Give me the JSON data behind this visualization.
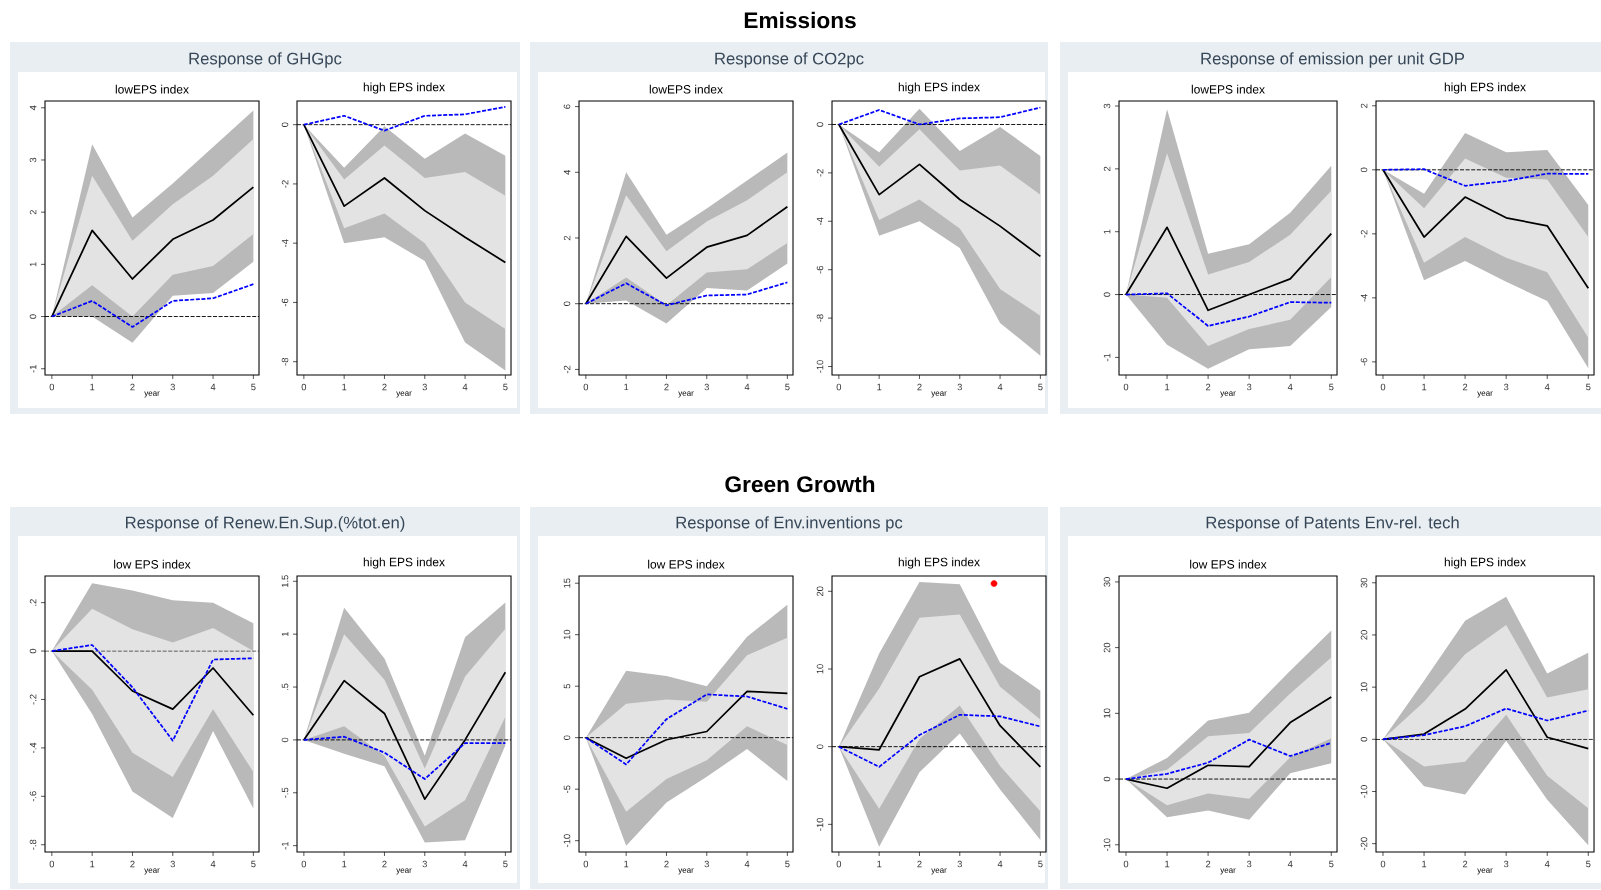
{
  "chart_data": [
    {
      "type": "other",
      "title": "Emissions"
    },
    {
      "type": "other",
      "title": "Response of GHGpc"
    },
    {
      "type": "line",
      "title": "lowEPS index",
      "xlabel": "year",
      "x": [
        0,
        1,
        2,
        3,
        4,
        5
      ],
      "xlim": [
        -0.17,
        5.14
      ],
      "xticks": [
        0,
        1,
        2,
        3,
        4,
        5
      ],
      "ylim": [
        -1.12,
        4.13
      ],
      "yticks": [
        -1,
        0,
        1,
        2,
        3,
        4
      ],
      "ref_lines": [
        {
          "axis": "y",
          "value": 0,
          "color": "#000000",
          "line_style": "dashed"
        }
      ],
      "series": [
        {
          "color": "#b9b9b9",
          "values": [
            null,
            null,
            null,
            null,
            null,
            null
          ],
          "lower": [
            0,
            0,
            -0.5,
            0.4,
            0.45,
            1.05
          ],
          "upper": [
            0,
            3.3,
            1.9,
            2.55,
            3.25,
            3.95
          ]
        },
        {
          "color": "#e3e3e3",
          "values": [
            null,
            null,
            null,
            null,
            null,
            null
          ],
          "lower": [
            0,
            0.6,
            0.0,
            0.8,
            0.97,
            1.58
          ],
          "upper": [
            0,
            2.7,
            1.45,
            2.15,
            2.7,
            3.4
          ]
        },
        {
          "color": "#000000",
          "values": [
            0,
            1.65,
            0.72,
            1.48,
            1.85,
            2.48
          ]
        },
        {
          "color": "#0000ff",
          "line_style": "dashed",
          "values": [
            0,
            0.3,
            -0.2,
            0.3,
            0.35,
            0.62
          ]
        }
      ]
    },
    {
      "type": "line",
      "title": "high EPS index",
      "xlabel": "year",
      "x": [
        0,
        1,
        2,
        3,
        4,
        5
      ],
      "xlim": [
        -0.17,
        5.14
      ],
      "xticks": [
        0,
        1,
        2,
        3,
        4,
        5
      ],
      "ylim": [
        -8.45,
        0.8
      ],
      "yticks": [
        -8,
        -6,
        -4,
        -2,
        0
      ],
      "ref_lines": [
        {
          "axis": "y",
          "value": 0,
          "color": "#000000",
          "line_style": "dashed"
        }
      ],
      "series": [
        {
          "color": "#b9b9b9",
          "values": [
            null,
            null,
            null,
            null,
            null,
            null
          ],
          "lower": [
            0,
            -4.0,
            -3.8,
            -4.6,
            -7.35,
            -8.3
          ],
          "upper": [
            0,
            -1.45,
            -0.05,
            -1.15,
            -0.3,
            -1.05
          ]
        },
        {
          "color": "#e3e3e3",
          "values": [
            null,
            null,
            null,
            null,
            null,
            null
          ],
          "lower": [
            0,
            -3.5,
            -3.0,
            -4.0,
            -6.0,
            -6.9
          ],
          "upper": [
            0,
            -1.85,
            -0.7,
            -1.8,
            -1.6,
            -2.4
          ]
        },
        {
          "color": "#000000",
          "values": [
            0,
            -2.75,
            -1.8,
            -2.9,
            -3.8,
            -4.65
          ]
        },
        {
          "color": "#0000ff",
          "line_style": "dashed",
          "values": [
            0,
            0.3,
            -0.2,
            0.3,
            0.35,
            0.6
          ]
        }
      ]
    },
    {
      "type": "other",
      "title": "Response of CO2pc"
    },
    {
      "type": "line",
      "title": "lowEPS index",
      "xlabel": "year",
      "x": [
        0,
        1,
        2,
        3,
        4,
        5
      ],
      "xlim": [
        -0.17,
        5.14
      ],
      "xticks": [
        0,
        1,
        2,
        3,
        4,
        5
      ],
      "ylim": [
        -2.17,
        6.17
      ],
      "yticks": [
        -2,
        0,
        2,
        4,
        6
      ],
      "ref_lines": [
        {
          "axis": "y",
          "value": 0,
          "color": "#000000",
          "line_style": "dashed"
        }
      ],
      "series": [
        {
          "color": "#b9b9b9",
          "values": [
            null,
            null,
            null,
            null,
            null,
            null
          ],
          "lower": [
            0,
            0.1,
            -0.6,
            0.48,
            0.4,
            1.22
          ],
          "upper": [
            0,
            4.0,
            2.1,
            2.9,
            3.75,
            4.6
          ]
        },
        {
          "color": "#e3e3e3",
          "values": [
            null,
            null,
            null,
            null,
            null,
            null
          ],
          "lower": [
            0,
            0.8,
            -0.05,
            0.95,
            1.05,
            1.85
          ],
          "upper": [
            0,
            3.3,
            1.6,
            2.5,
            3.15,
            4.0
          ]
        },
        {
          "color": "#000000",
          "values": [
            0,
            2.05,
            0.78,
            1.72,
            2.08,
            2.95
          ]
        },
        {
          "color": "#0000ff",
          "line_style": "dashed",
          "values": [
            0,
            0.62,
            -0.05,
            0.25,
            0.28,
            0.65
          ]
        }
      ]
    },
    {
      "type": "line",
      "title": "high EPS index",
      "xlabel": "year",
      "x": [
        0,
        1,
        2,
        3,
        4,
        5
      ],
      "xlim": [
        -0.17,
        5.14
      ],
      "xticks": [
        0,
        1,
        2,
        3,
        4,
        5
      ],
      "ylim": [
        -10.35,
        0.97
      ],
      "yticks": [
        -10,
        -8,
        -6,
        -4,
        -2,
        0
      ],
      "ref_lines": [
        {
          "axis": "y",
          "value": 0,
          "color": "#000000",
          "line_style": "dashed"
        }
      ],
      "series": [
        {
          "color": "#b9b9b9",
          "values": [
            null,
            null,
            null,
            null,
            null,
            null
          ],
          "lower": [
            0,
            -4.6,
            -4.0,
            -5.1,
            -8.2,
            -9.55
          ],
          "upper": [
            0,
            -1.15,
            0.65,
            -1.1,
            -0.1,
            -1.3
          ]
        },
        {
          "color": "#e3e3e3",
          "values": [
            null,
            null,
            null,
            null,
            null,
            null
          ],
          "lower": [
            0,
            -3.95,
            -3.1,
            -4.3,
            -6.8,
            -7.9
          ],
          "upper": [
            0,
            -1.75,
            -0.2,
            -1.9,
            -1.7,
            -2.9
          ]
        },
        {
          "color": "#000000",
          "values": [
            0,
            -2.9,
            -1.65,
            -3.1,
            -4.2,
            -5.45
          ]
        },
        {
          "color": "#0000ff",
          "line_style": "dashed",
          "values": [
            0,
            0.6,
            0,
            0.25,
            0.3,
            0.7
          ]
        }
      ]
    },
    {
      "type": "other",
      "title": "Response of emission per unit GDP"
    },
    {
      "type": "line",
      "title": "lowEPS index",
      "xlabel": "year",
      "x": [
        0,
        1,
        2,
        3,
        4,
        5
      ],
      "xlim": [
        -0.17,
        5.14
      ],
      "xticks": [
        0,
        1,
        2,
        3,
        4,
        5
      ],
      "ylim": [
        -1.28,
        3.08
      ],
      "yticks": [
        -1,
        0,
        1,
        2,
        3
      ],
      "ref_lines": [
        {
          "axis": "y",
          "value": 0,
          "color": "#000000",
          "line_style": "dashed"
        }
      ],
      "series": [
        {
          "color": "#b9b9b9",
          "values": [
            null,
            null,
            null,
            null,
            null,
            null
          ],
          "lower": [
            0,
            -0.8,
            -1.18,
            -0.87,
            -0.82,
            -0.2
          ],
          "upper": [
            0,
            2.95,
            0.65,
            0.8,
            1.3,
            2.05
          ]
        },
        {
          "color": "#e3e3e3",
          "values": [
            null,
            null,
            null,
            null,
            null,
            null
          ],
          "lower": [
            0,
            -0.05,
            -0.82,
            -0.55,
            -0.4,
            0.28
          ],
          "upper": [
            0,
            2.25,
            0.32,
            0.52,
            0.95,
            1.65
          ]
        },
        {
          "color": "#000000",
          "values": [
            0,
            1.07,
            -0.25,
            0.0,
            0.25,
            0.97
          ]
        },
        {
          "color": "#0000ff",
          "line_style": "dashed",
          "values": [
            0,
            0.02,
            -0.5,
            -0.35,
            -0.12,
            -0.13
          ]
        }
      ]
    },
    {
      "type": "line",
      "title": "high EPS index",
      "xlabel": "year",
      "x": [
        0,
        1,
        2,
        3,
        4,
        5
      ],
      "xlim": [
        -0.17,
        5.14
      ],
      "xticks": [
        0,
        1,
        2,
        3,
        4,
        5
      ],
      "ylim": [
        -6.41,
        2.15
      ],
      "yticks": [
        -6,
        -4,
        -2,
        0,
        2
      ],
      "ref_lines": [
        {
          "axis": "y",
          "value": 0,
          "color": "#000000",
          "line_style": "dashed"
        }
      ],
      "series": [
        {
          "color": "#b9b9b9",
          "values": [
            null,
            null,
            null,
            null,
            null,
            null
          ],
          "lower": [
            0,
            -3.45,
            -2.85,
            -3.5,
            -4.1,
            -6.2
          ],
          "upper": [
            0,
            -0.75,
            1.15,
            0.55,
            0.62,
            -1.1
          ]
        },
        {
          "color": "#e3e3e3",
          "values": [
            null,
            null,
            null,
            null,
            null,
            null
          ],
          "lower": [
            0,
            -2.9,
            -2.1,
            -2.75,
            -3.2,
            -5.25
          ],
          "upper": [
            0,
            -1.2,
            0.35,
            -0.25,
            -0.3,
            -2.1
          ]
        },
        {
          "color": "#000000",
          "values": [
            0,
            -2.1,
            -0.85,
            -1.5,
            -1.75,
            -3.7
          ]
        },
        {
          "color": "#0000ff",
          "line_style": "dashed",
          "values": [
            0,
            0.02,
            -0.5,
            -0.35,
            -0.12,
            -0.13
          ]
        }
      ]
    },
    {
      "type": "other",
      "title": "Green Growth"
    },
    {
      "type": "other",
      "title": "Response of Renew.En.Sup.(%tot.en)"
    },
    {
      "type": "line",
      "title": "low EPS index",
      "xlabel": "year",
      "x": [
        0,
        1,
        2,
        3,
        4,
        5
      ],
      "xlim": [
        -0.17,
        5.14
      ],
      "xticks": [
        0,
        1,
        2,
        3,
        4,
        5
      ],
      "ylim": [
        -0.83,
        0.31
      ],
      "yticks": [
        {
          "value": -0.8,
          "label": "-.8"
        },
        {
          "value": -0.6,
          "label": "-.6"
        },
        {
          "value": -0.4,
          "label": "-.4"
        },
        {
          "value": -0.2,
          "label": "-.2"
        },
        0,
        {
          "value": 0.2,
          "label": ".2"
        }
      ],
      "ref_lines": [
        {
          "axis": "y",
          "value": 0,
          "color": "#000000",
          "line_style": "dashed"
        }
      ],
      "series": [
        {
          "color": "#b9b9b9",
          "values": [
            null,
            null,
            null,
            null,
            null,
            null
          ],
          "lower": [
            0,
            -0.26,
            -0.58,
            -0.69,
            -0.33,
            -0.65
          ],
          "upper": [
            0,
            0.28,
            0.25,
            0.21,
            0.2,
            0.115
          ]
        },
        {
          "color": "#e3e3e3",
          "values": [
            null,
            null,
            null,
            null,
            null,
            null
          ],
          "lower": [
            0,
            -0.16,
            -0.42,
            -0.52,
            -0.24,
            -0.5
          ],
          "upper": [
            0,
            0.175,
            0.09,
            0.035,
            0.095,
            0.0
          ]
        },
        {
          "color": "#000000",
          "values": [
            0,
            0.0,
            -0.165,
            -0.24,
            -0.07,
            -0.265
          ]
        },
        {
          "color": "#0000ff",
          "line_style": "dashed",
          "values": [
            0,
            0.025,
            -0.15,
            -0.37,
            -0.035,
            -0.03
          ]
        }
      ]
    },
    {
      "type": "line",
      "title": "high EPS index",
      "xlabel": "year",
      "x": [
        0,
        1,
        2,
        3,
        4,
        5
      ],
      "xlim": [
        -0.17,
        5.14
      ],
      "xticks": [
        0,
        1,
        2,
        3,
        4,
        5
      ],
      "ylim": [
        -1.06,
        1.55
      ],
      "yticks": [
        -1,
        {
          "value": -0.5,
          "label": "-.5"
        },
        0,
        {
          "value": 0.5,
          "label": ".5"
        },
        1,
        1.5
      ],
      "ref_lines": [
        {
          "axis": "y",
          "value": 0,
          "color": "#000000",
          "line_style": "dashed"
        }
      ],
      "series": [
        {
          "color": "#b9b9b9",
          "values": [
            null,
            null,
            null,
            null,
            null,
            null
          ],
          "lower": [
            0,
            -0.13,
            -0.25,
            -0.97,
            -0.95,
            -0.05
          ],
          "upper": [
            0,
            1.25,
            0.77,
            -0.15,
            0.97,
            1.3
          ]
        },
        {
          "color": "#e3e3e3",
          "values": [
            null,
            null,
            null,
            null,
            null,
            null
          ],
          "lower": [
            0,
            0.13,
            -0.15,
            -0.82,
            -0.57,
            0.22
          ],
          "upper": [
            0,
            1.0,
            0.57,
            -0.27,
            0.6,
            1.05
          ]
        },
        {
          "color": "#000000",
          "values": [
            0,
            0.56,
            0.25,
            -0.56,
            0.0,
            0.64
          ]
        },
        {
          "color": "#0000ff",
          "line_style": "dashed",
          "values": [
            0,
            0.03,
            -0.12,
            -0.37,
            -0.03,
            -0.03
          ]
        }
      ]
    },
    {
      "type": "other",
      "title": "Response of Env.inventions pc"
    },
    {
      "type": "line",
      "title": "low EPS index",
      "xlabel": "year",
      "x": [
        0,
        1,
        2,
        3,
        4,
        5
      ],
      "xlim": [
        -0.17,
        5.14
      ],
      "xticks": [
        0,
        1,
        2,
        3,
        4,
        5
      ],
      "ylim": [
        -11.1,
        15.7
      ],
      "yticks": [
        -10,
        -5,
        0,
        5,
        10,
        15
      ],
      "ref_lines": [
        {
          "axis": "y",
          "value": 0,
          "color": "#000000",
          "line_style": "dashed"
        }
      ],
      "series": [
        {
          "color": "#b9b9b9",
          "values": [
            null,
            null,
            null,
            null,
            null,
            null
          ],
          "lower": [
            0,
            -10.5,
            -6.3,
            -3.8,
            -1.1,
            -4.2
          ],
          "upper": [
            0,
            6.5,
            6.0,
            5.0,
            9.8,
            12.9
          ]
        },
        {
          "color": "#e3e3e3",
          "values": [
            null,
            null,
            null,
            null,
            null,
            null
          ],
          "lower": [
            0,
            -7.2,
            -4.0,
            -2.2,
            1.1,
            -0.7
          ],
          "upper": [
            0,
            3.3,
            3.7,
            3.5,
            8.0,
            9.7
          ]
        },
        {
          "color": "#000000",
          "values": [
            0,
            -2.0,
            -0.2,
            0.6,
            4.5,
            4.3
          ]
        },
        {
          "color": "#0000ff",
          "line_style": "dashed",
          "values": [
            0,
            -2.6,
            1.8,
            4.2,
            4.0,
            2.8
          ]
        }
      ]
    },
    {
      "type": "line",
      "title": "high EPS index",
      "xlabel": "year",
      "x": [
        0,
        1,
        2,
        3,
        4,
        5
      ],
      "xlim": [
        -0.17,
        5.14
      ],
      "xticks": [
        0,
        1,
        2,
        3,
        4,
        5
      ],
      "ylim": [
        -13.56,
        21.97
      ],
      "yticks": [
        -10,
        0,
        10,
        20
      ],
      "ref_lines": [
        {
          "axis": "y",
          "value": 0,
          "color": "#000000",
          "line_style": "dashed"
        }
      ],
      "series": [
        {
          "color": "#b9b9b9",
          "values": [
            null,
            null,
            null,
            null,
            null,
            null
          ],
          "lower": [
            0,
            -12.9,
            -3.3,
            1.7,
            -5.5,
            -12.0
          ],
          "upper": [
            0,
            12.0,
            21.2,
            20.9,
            10.8,
            7.2
          ]
        },
        {
          "color": "#e3e3e3",
          "values": [
            null,
            null,
            null,
            null,
            null,
            null
          ],
          "lower": [
            0,
            -8.0,
            1.0,
            5.3,
            -2.5,
            -8.3
          ],
          "upper": [
            0,
            7.5,
            16.6,
            17.0,
            7.7,
            3.5
          ]
        },
        {
          "color": "#000000",
          "values": [
            0,
            -0.4,
            9.0,
            11.3,
            2.7,
            -2.6
          ]
        },
        {
          "color": "#0000ff",
          "line_style": "dashed",
          "values": [
            0,
            -2.6,
            1.5,
            4.1,
            3.9,
            2.6
          ]
        },
        {
          "type": "scatter",
          "color": "#ff0000",
          "marker": "circle",
          "x": [
            3.85
          ],
          "values": [
            21
          ]
        }
      ]
    },
    {
      "type": "other",
      "title": "Response of Patents Env-rel. tech"
    },
    {
      "type": "line",
      "title": "low EPS index",
      "xlabel": "year",
      "x": [
        0,
        1,
        2,
        3,
        4,
        5
      ],
      "xlim": [
        -0.17,
        5.14
      ],
      "xticks": [
        0,
        1,
        2,
        3,
        4,
        5
      ],
      "ylim": [
        -11.1,
        30.9
      ],
      "yticks": [
        -10,
        0,
        10,
        20,
        30
      ],
      "ref_lines": [
        {
          "axis": "y",
          "value": 0,
          "color": "#000000",
          "line_style": "dashed"
        }
      ],
      "series": [
        {
          "color": "#b9b9b9",
          "values": [
            null,
            null,
            null,
            null,
            null,
            null
          ],
          "lower": [
            0,
            -5.8,
            -4.8,
            -6.2,
            0.9,
            2.4
          ],
          "upper": [
            0,
            3.2,
            8.9,
            10.1,
            16.5,
            22.6
          ]
        },
        {
          "color": "#e3e3e3",
          "values": [
            null,
            null,
            null,
            null,
            null,
            null
          ],
          "lower": [
            0,
            -4.0,
            -2.2,
            -3.0,
            3.3,
            6.2
          ],
          "upper": [
            0,
            1.4,
            6.5,
            7.0,
            13.0,
            18.5
          ]
        },
        {
          "color": "#000000",
          "values": [
            0,
            -1.4,
            2.1,
            1.9,
            8.6,
            12.5
          ]
        },
        {
          "color": "#0000ff",
          "line_style": "dashed",
          "values": [
            0,
            0.8,
            2.5,
            6.0,
            3.5,
            5.5
          ]
        }
      ]
    },
    {
      "type": "line",
      "title": "high EPS index",
      "xlabel": "year",
      "x": [
        0,
        1,
        2,
        3,
        4,
        5
      ],
      "xlim": [
        -0.17,
        5.14
      ],
      "xticks": [
        0,
        1,
        2,
        3,
        4,
        5
      ],
      "ylim": [
        -21.6,
        31.3
      ],
      "yticks": [
        -20,
        -10,
        0,
        10,
        20,
        30
      ],
      "ref_lines": [
        {
          "axis": "y",
          "value": 0,
          "color": "#000000",
          "line_style": "dashed"
        }
      ],
      "series": [
        {
          "color": "#b9b9b9",
          "values": [
            null,
            null,
            null,
            null,
            null,
            null
          ],
          "lower": [
            0,
            -9.0,
            -10.6,
            -0.3,
            -11.6,
            -20.3
          ],
          "upper": [
            0,
            11.2,
            22.7,
            27.3,
            12.6,
            16.6
          ]
        },
        {
          "color": "#e3e3e3",
          "values": [
            null,
            null,
            null,
            null,
            null,
            null
          ],
          "lower": [
            0,
            -5.2,
            -4.3,
            4.7,
            -7.0,
            -13.2
          ],
          "upper": [
            0,
            7.2,
            16.3,
            21.9,
            8.0,
            9.6
          ]
        },
        {
          "color": "#000000",
          "values": [
            0,
            1.0,
            5.8,
            13.3,
            0.4,
            -1.8
          ]
        },
        {
          "color": "#0000ff",
          "line_style": "dashed",
          "values": [
            0,
            0.8,
            2.5,
            5.9,
            3.6,
            5.5
          ]
        }
      ]
    }
  ]
}
